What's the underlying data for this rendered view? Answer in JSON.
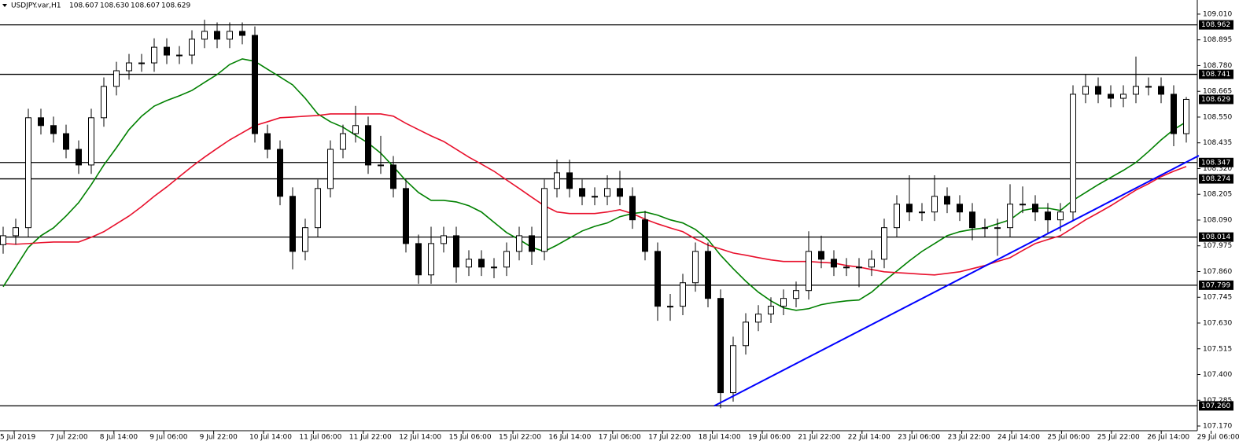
{
  "chart_data": {
    "type": "candlestick",
    "header": {
      "symbol": "USDJPY.var,H1",
      "values": [
        108.607,
        108.63,
        108.607,
        108.629
      ],
      "value_labels": [
        "108.607",
        "108.630",
        "108.607",
        "108.629"
      ]
    },
    "ylim": [
      107.149,
      109.073
    ],
    "yticks": [
      {
        "value": 109.01,
        "label": "109.010"
      },
      108.895,
      {
        "value": 108.78,
        "label": "108.780"
      },
      108.665,
      {
        "value": 108.55,
        "label": "108.550"
      },
      108.435,
      {
        "value": 108.32,
        "label": "108.320"
      },
      108.205,
      {
        "value": 108.09,
        "label": "108.090"
      },
      107.975,
      {
        "value": 107.86,
        "label": "107.860"
      },
      107.745,
      {
        "value": 107.63,
        "label": "107.630"
      },
      107.515,
      {
        "value": 107.4,
        "label": "107.400"
      },
      107.285,
      {
        "value": 107.17,
        "label": "107.170"
      }
    ],
    "x_labels": [
      "5 Jul 2019",
      "7 Jul 22:00",
      "8 Jul 14:00",
      "9 Jul 06:00",
      "9 Jul 22:00",
      "10 Jul 14:00",
      "11 Jul 06:00",
      "11 Jul 22:00",
      "12 Jul 14:00",
      "15 Jul 06:00",
      "15 Jul 22:00",
      "16 Jul 14:00",
      "17 Jul 06:00",
      "17 Jul 22:00",
      "18 Jul 14:00",
      "19 Jul 06:00",
      "21 Jul 22:00",
      "22 Jul 14:00",
      "23 Jul 06:00",
      "23 Jul 22:00",
      "24 Jul 14:00",
      "25 Jul 06:00",
      "25 Jul 22:00",
      "26 Jul 14:00",
      "29 Jul 06:00"
    ],
    "levels": [
      108.962,
      108.741,
      108.347,
      108.274,
      108.014,
      107.799,
      {
        "value": 107.26,
        "label": "107.260"
      }
    ],
    "level_color": "#000000",
    "last_price": 108.629,
    "candles": {
      "open": [
        107.98,
        108.02,
        108.056,
        108.547,
        108.512,
        108.476,
        108.406,
        108.336,
        108.547,
        108.687,
        108.757,
        108.792,
        108.792,
        108.862,
        108.827,
        108.827,
        108.898,
        108.933,
        108.898,
        108.933,
        108.915,
        108.476,
        108.406,
        108.196,
        107.95,
        108.056,
        108.231,
        108.406,
        108.476,
        108.512,
        108.336,
        108.336,
        108.231,
        107.985,
        107.845,
        107.985,
        108.02,
        107.88,
        107.915,
        107.88,
        107.88,
        107.95,
        108.02,
        107.95,
        108.231,
        108.301,
        108.231,
        108.196,
        108.196,
        108.231,
        108.196,
        108.091,
        107.95,
        107.705,
        107.705,
        107.81,
        107.95,
        107.74,
        107.319,
        107.529,
        107.634,
        107.67,
        107.705,
        107.74,
        107.775,
        107.95,
        107.915,
        107.88,
        107.88,
        107.88,
        107.915,
        108.056,
        108.161,
        108.126,
        108.126,
        108.196,
        108.161,
        108.126,
        108.056,
        108.056,
        108.056,
        108.161,
        108.161,
        108.126,
        108.091,
        108.126,
        108.652,
        108.687,
        108.652,
        108.634,
        108.652,
        108.687,
        108.687,
        108.652,
        108.476
      ],
      "high": [
        108.06,
        108.096,
        108.587,
        108.587,
        108.552,
        108.516,
        108.446,
        108.587,
        108.727,
        108.797,
        108.832,
        108.832,
        108.902,
        108.902,
        108.867,
        108.938,
        108.985,
        108.973,
        108.973,
        108.973,
        108.955,
        108.516,
        108.446,
        108.236,
        108.096,
        108.271,
        108.446,
        108.516,
        108.6,
        108.552,
        108.466,
        108.376,
        108.271,
        108.025,
        108.06,
        108.06,
        108.06,
        107.955,
        107.955,
        107.92,
        107.99,
        108.06,
        108.06,
        108.271,
        108.36,
        108.36,
        108.271,
        108.236,
        108.29,
        108.31,
        108.236,
        108.131,
        107.99,
        107.76,
        107.85,
        107.99,
        107.99,
        107.78,
        107.569,
        107.674,
        107.71,
        107.745,
        107.78,
        107.815,
        108.04,
        108.02,
        107.955,
        107.92,
        107.92,
        107.955,
        108.096,
        108.201,
        108.29,
        108.166,
        108.29,
        108.236,
        108.201,
        108.166,
        108.096,
        108.096,
        108.25,
        108.24,
        108.201,
        108.166,
        108.166,
        108.692,
        108.74,
        108.727,
        108.692,
        108.692,
        108.82,
        108.727,
        108.727,
        108.692,
        108.64
      ],
      "low": [
        107.94,
        107.98,
        108.016,
        108.472,
        108.436,
        108.366,
        108.296,
        108.296,
        108.507,
        108.647,
        108.717,
        108.752,
        108.752,
        108.787,
        108.787,
        108.787,
        108.858,
        108.858,
        108.858,
        108.875,
        108.436,
        108.366,
        108.156,
        107.87,
        107.91,
        108.016,
        108.191,
        108.366,
        108.436,
        108.296,
        108.296,
        108.191,
        107.945,
        107.805,
        107.805,
        107.945,
        107.81,
        107.84,
        107.84,
        107.83,
        107.84,
        107.91,
        107.89,
        107.91,
        108.191,
        108.191,
        108.156,
        108.156,
        108.156,
        108.156,
        108.051,
        107.91,
        107.64,
        107.64,
        107.665,
        107.77,
        107.7,
        107.25,
        107.279,
        107.489,
        107.594,
        107.63,
        107.665,
        107.7,
        107.735,
        107.875,
        107.84,
        107.84,
        107.79,
        107.84,
        107.875,
        108.016,
        108.086,
        108.086,
        108.086,
        108.121,
        108.086,
        108.0,
        108.016,
        107.93,
        108.016,
        108.121,
        108.086,
        108.03,
        108.04,
        108.086,
        108.612,
        108.612,
        108.594,
        108.594,
        108.612,
        108.647,
        108.612,
        108.42,
        108.436
      ],
      "close": [
        108.02,
        108.056,
        108.547,
        108.512,
        108.476,
        108.406,
        108.336,
        108.547,
        108.687,
        108.757,
        108.792,
        108.792,
        108.862,
        108.827,
        108.827,
        108.898,
        108.933,
        108.898,
        108.933,
        108.915,
        108.476,
        108.406,
        108.196,
        107.95,
        108.056,
        108.231,
        108.406,
        108.476,
        108.512,
        108.336,
        108.336,
        108.231,
        107.985,
        107.845,
        107.985,
        108.02,
        107.88,
        107.915,
        107.88,
        107.88,
        107.95,
        108.02,
        107.95,
        108.231,
        108.301,
        108.231,
        108.196,
        108.196,
        108.231,
        108.196,
        108.091,
        107.95,
        107.705,
        107.705,
        107.81,
        107.95,
        107.74,
        107.319,
        107.529,
        107.634,
        107.67,
        107.705,
        107.74,
        107.775,
        107.95,
        107.915,
        107.88,
        107.88,
        107.88,
        107.915,
        108.056,
        108.161,
        108.126,
        108.126,
        108.196,
        108.161,
        108.126,
        108.056,
        108.056,
        108.056,
        108.161,
        108.161,
        108.126,
        108.091,
        108.126,
        108.652,
        108.687,
        108.652,
        108.634,
        108.652,
        108.687,
        108.687,
        108.652,
        108.476,
        108.629
      ]
    },
    "series": [
      {
        "color": "#008000",
        "values": [
          107.792,
          107.88,
          107.968,
          108.02,
          108.055,
          108.108,
          108.168,
          108.248,
          108.336,
          108.413,
          108.494,
          108.554,
          108.599,
          108.624,
          108.645,
          108.669,
          108.705,
          108.74,
          108.785,
          108.81,
          108.799,
          108.764,
          108.729,
          108.694,
          108.634,
          108.564,
          108.529,
          108.505,
          108.469,
          108.434,
          108.389,
          108.329,
          108.266,
          108.213,
          108.178,
          108.178,
          108.171,
          108.154,
          108.126,
          108.08,
          108.034,
          108.003,
          107.968,
          107.95,
          107.978,
          108.01,
          108.041,
          108.062,
          108.077,
          108.105,
          108.119,
          108.126,
          108.112,
          108.091,
          108.077,
          108.048,
          108.003,
          107.933,
          107.873,
          107.817,
          107.768,
          107.729,
          107.698,
          107.687,
          107.694,
          107.712,
          107.722,
          107.729,
          107.733,
          107.768,
          107.817,
          107.862,
          107.908,
          107.95,
          107.985,
          108.02,
          108.038,
          108.048,
          108.055,
          108.073,
          108.091,
          108.133,
          108.143,
          108.143,
          108.133,
          108.178,
          108.213,
          108.248,
          108.28,
          108.312,
          108.347,
          108.396,
          108.448,
          108.494,
          108.529
        ]
      },
      {
        "color": "#e8102c",
        "values": [
          107.985,
          107.982,
          107.985,
          107.989,
          107.992,
          107.992,
          107.992,
          108.013,
          108.038,
          108.073,
          108.108,
          108.15,
          108.196,
          108.238,
          108.284,
          108.329,
          108.371,
          108.41,
          108.448,
          108.48,
          108.512,
          108.529,
          108.547,
          108.55,
          108.554,
          108.557,
          108.564,
          108.564,
          108.564,
          108.564,
          108.564,
          108.554,
          108.522,
          108.494,
          108.466,
          108.441,
          108.406,
          108.371,
          108.34,
          108.308,
          108.269,
          108.231,
          108.192,
          108.154,
          108.126,
          108.119,
          108.119,
          108.119,
          108.126,
          108.136,
          108.119,
          108.094,
          108.073,
          108.055,
          108.038,
          108.006,
          107.978,
          107.961,
          107.943,
          107.933,
          107.922,
          107.912,
          107.905,
          107.905,
          107.905,
          107.901,
          107.898,
          107.887,
          107.88,
          107.869,
          107.859,
          107.855,
          107.852,
          107.848,
          107.845,
          107.852,
          107.859,
          107.873,
          107.887,
          107.905,
          107.922,
          107.954,
          107.985,
          108.003,
          108.02,
          108.055,
          108.091,
          108.122,
          108.154,
          108.189,
          108.224,
          108.252,
          108.284,
          108.308,
          108.329
        ]
      }
    ],
    "trendline": {
      "color": "#0000ff",
      "x": [
        56.5,
        95
      ],
      "values": [
        107.26,
        108.378
      ]
    }
  }
}
